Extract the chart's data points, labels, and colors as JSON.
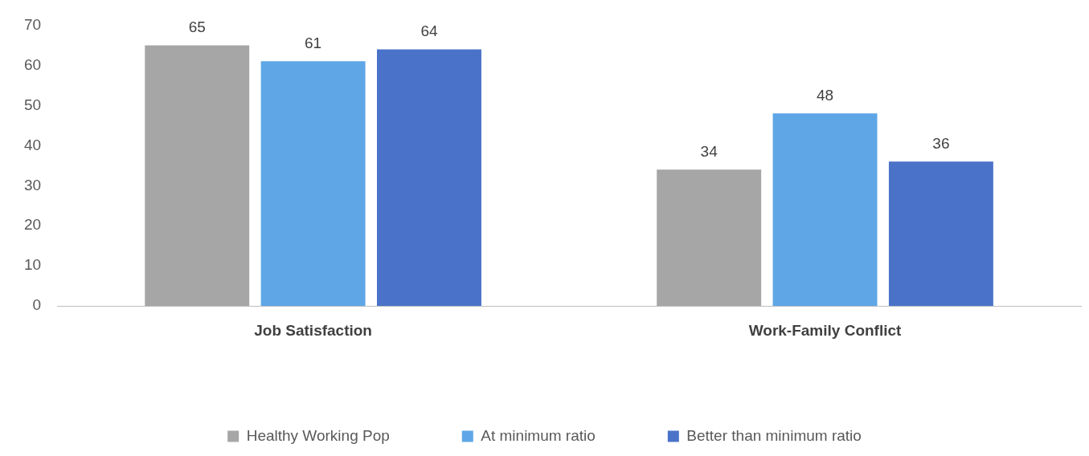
{
  "chart_data": {
    "type": "bar",
    "categories": [
      "Job Satisfaction",
      "Work-Family Conflict"
    ],
    "series": [
      {
        "name": "Healthy Working Pop",
        "color": "#a6a6a6",
        "values": [
          65,
          34
        ]
      },
      {
        "name": "At minimum ratio",
        "color": "#5ea6e6",
        "values": [
          61,
          48
        ]
      },
      {
        "name": "Better than minimum ratio",
        "color": "#4a72c8",
        "values": [
          64,
          36
        ]
      }
    ],
    "ylim": [
      0,
      70
    ],
    "yticks": [
      0,
      10,
      20,
      30,
      40,
      50,
      60,
      70
    ],
    "grid": false,
    "legend": "bottom",
    "data_labels": true
  }
}
